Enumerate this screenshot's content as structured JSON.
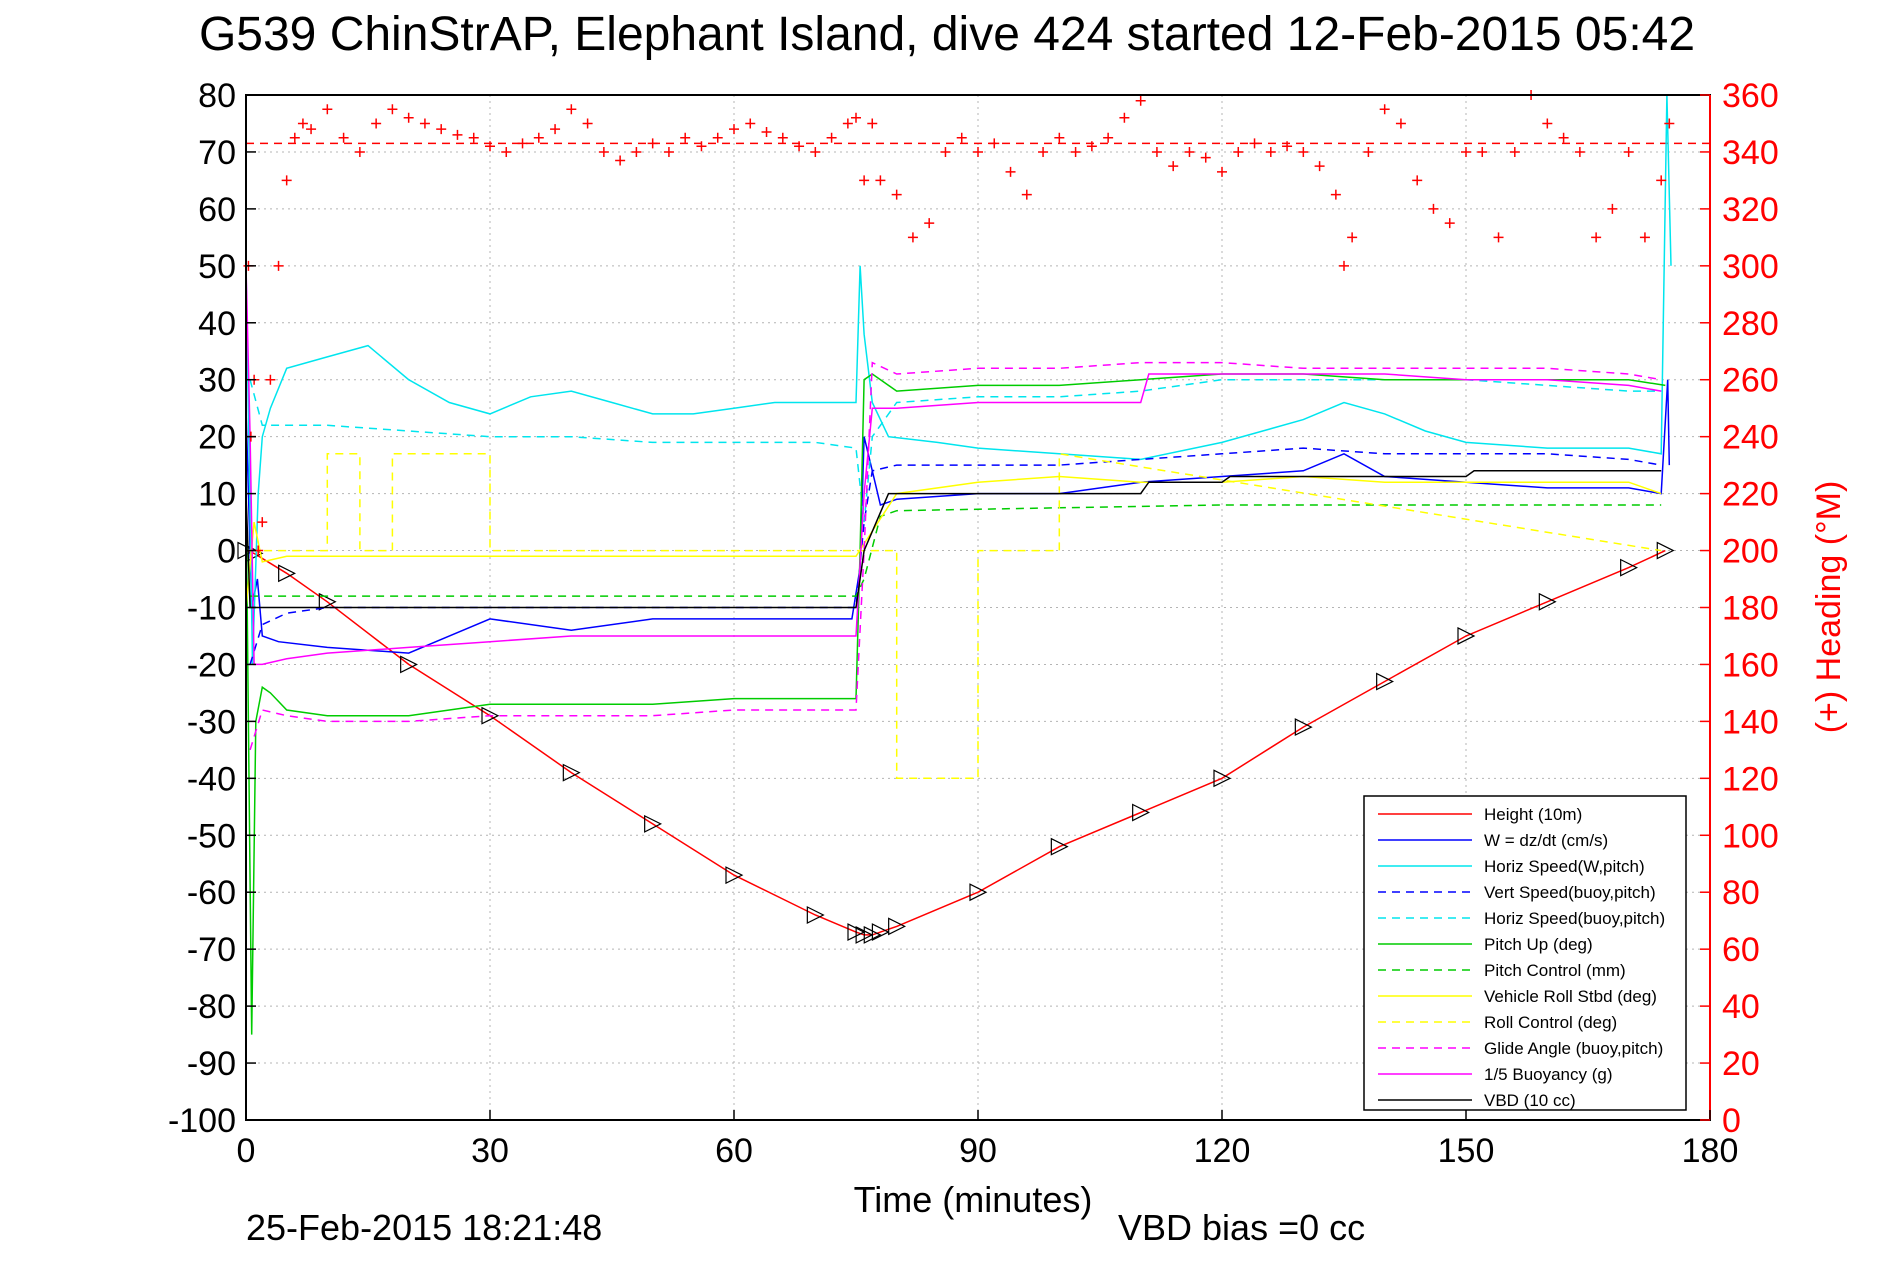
{
  "chart_data": {
    "type": "line",
    "title": "G539 ChinStrAP, Elephant Island, dive 424 started 12-Feb-2015 05:42",
    "xlabel": "Time (minutes)",
    "ylabel": "",
    "y2label": "(+) Heading (°M)",
    "xlim": [
      0,
      180
    ],
    "ylim": [
      -100,
      80
    ],
    "y2lim": [
      0,
      360
    ],
    "x_ticks": [
      "0",
      "30",
      "60",
      "90",
      "120",
      "150",
      "180"
    ],
    "y_ticks": [
      "80",
      "70",
      "60",
      "50",
      "40",
      "30",
      "20",
      "10",
      "0",
      "-10",
      "-20",
      "-30",
      "-40",
      "-50",
      "-60",
      "-70",
      "-80",
      "-90",
      "-100"
    ],
    "y2_ticks": [
      "360",
      "340",
      "320",
      "300",
      "280",
      "260",
      "240",
      "220",
      "200",
      "180",
      "160",
      "140",
      "120",
      "100",
      "80",
      "60",
      "40",
      "20",
      "0"
    ],
    "grid": true,
    "legend_position": "bottom-right",
    "footer_left": "25-Feb-2015 18:21:48",
    "footer_right": "VBD bias =0 cc",
    "colors": {
      "red": "#ff0000",
      "blue": "#0000ff",
      "cyan": "#00e5ee",
      "green": "#00cc00",
      "yellow": "#ffff00",
      "magenta": "#ff00ff",
      "black": "#000000",
      "grid": "#b4b4b4"
    },
    "heading_reference": 343,
    "series": [
      {
        "name": "Height (10m)",
        "color": "#ff0000",
        "style": "solid",
        "axis": "left",
        "x": [
          0,
          1,
          5,
          10,
          20,
          30,
          40,
          50,
          60,
          70,
          75,
          76,
          77,
          78,
          80,
          90,
          100,
          110,
          120,
          130,
          140,
          150,
          160,
          170,
          174.5
        ],
        "y": [
          0,
          -0.5,
          -4,
          -9,
          -20,
          -29,
          -39,
          -48,
          -57,
          -64,
          -67,
          -67.5,
          -67.5,
          -67,
          -66,
          -60,
          -52,
          -46,
          -40,
          -31,
          -23,
          -15,
          -9,
          -3,
          0
        ]
      },
      {
        "name": "W = dz/dt (cm/s)",
        "color": "#0000ff",
        "style": "solid",
        "axis": "left",
        "x": [
          0,
          0.7,
          1.4,
          2,
          4,
          10,
          20,
          30,
          40,
          50,
          60,
          70,
          74.5,
          75.5,
          76,
          77,
          78,
          80,
          90,
          100,
          110,
          120,
          130,
          135,
          140,
          150,
          160,
          170,
          174,
          174.8,
          175
        ],
        "y": [
          25,
          -10,
          -5,
          -15,
          -16,
          -17,
          -18,
          -12,
          -14,
          -12,
          -12,
          -12,
          -12,
          -3,
          20,
          14,
          8,
          9,
          10,
          10,
          12,
          13,
          14,
          17,
          13,
          12,
          11,
          11,
          10,
          30,
          15
        ]
      },
      {
        "name": "Horiz Speed(W,pitch)",
        "color": "#00e5ee",
        "style": "solid",
        "axis": "left",
        "x": [
          0,
          0.8,
          1.5,
          2,
          3,
          5,
          10,
          15,
          20,
          25,
          30,
          35,
          40,
          45,
          50,
          55,
          60,
          65,
          70,
          75,
          75.5,
          76,
          77,
          79,
          85,
          90,
          100,
          110,
          120,
          125,
          130,
          135,
          140,
          145,
          150,
          160,
          170,
          174,
          174.7,
          175.2
        ],
        "y": [
          50,
          -20,
          10,
          20,
          25,
          32,
          34,
          36,
          30,
          26,
          24,
          27,
          28,
          26,
          24,
          24,
          25,
          26,
          26,
          26,
          50,
          38,
          26,
          20,
          19,
          18,
          17,
          16,
          19,
          21,
          23,
          26,
          24,
          21,
          19,
          18,
          18,
          17,
          80,
          50
        ]
      },
      {
        "name": "Vert Speed(buoy,pitch)",
        "color": "#0000ff",
        "style": "dashed",
        "axis": "left",
        "x": [
          0.5,
          2,
          5,
          10,
          20,
          30,
          40,
          50,
          60,
          70,
          75,
          76,
          77,
          80,
          90,
          100,
          110,
          120,
          130,
          140,
          150,
          160,
          170,
          174
        ],
        "y": [
          -20,
          -13,
          -11,
          -10,
          -10,
          -10,
          -10,
          -10,
          -10,
          -10,
          -10,
          5,
          14,
          15,
          15,
          15,
          16,
          17,
          18,
          17,
          17,
          17,
          16,
          15
        ]
      },
      {
        "name": "Horiz Speed(buoy,pitch)",
        "color": "#00e5ee",
        "style": "dashed",
        "axis": "left",
        "x": [
          0.5,
          2,
          5,
          10,
          20,
          30,
          40,
          50,
          60,
          70,
          75,
          76,
          77,
          80,
          90,
          100,
          110,
          120,
          130,
          140,
          150,
          160,
          170,
          174
        ],
        "y": [
          30,
          22,
          22,
          22,
          21,
          20,
          20,
          19,
          19,
          19,
          18,
          5,
          20,
          26,
          27,
          27,
          28,
          30,
          30,
          30,
          30,
          29,
          28,
          28
        ]
      },
      {
        "name": "Pitch Up (deg)",
        "color": "#00cc00",
        "style": "solid",
        "axis": "left",
        "x": [
          0,
          0.7,
          1.2,
          2,
          3,
          5,
          10,
          20,
          30,
          40,
          50,
          60,
          70,
          75,
          75.5,
          76,
          77,
          80,
          90,
          100,
          110,
          120,
          130,
          140,
          150,
          160,
          170,
          174.5
        ],
        "y": [
          10,
          -85,
          -30,
          -24,
          -25,
          -28,
          -29,
          -29,
          -27,
          -27,
          -27,
          -26,
          -26,
          -26,
          0,
          30,
          31,
          28,
          29,
          29,
          30,
          31,
          31,
          30,
          30,
          30,
          30,
          29
        ]
      },
      {
        "name": "Pitch Control (mm)",
        "color": "#00cc00",
        "style": "dashed",
        "axis": "left",
        "x": [
          0.5,
          75,
          76,
          78,
          80,
          100,
          120,
          150,
          174
        ],
        "y": [
          -8,
          -8,
          -5,
          6,
          7,
          7.5,
          8,
          8,
          8
        ]
      },
      {
        "name": "Vehicle Roll Stbd (deg)",
        "color": "#ffff00",
        "style": "solid",
        "axis": "left",
        "x": [
          0,
          1,
          2,
          5,
          10,
          20,
          30,
          40,
          50,
          60,
          70,
          75,
          80,
          90,
          100,
          110,
          120,
          130,
          140,
          150,
          160,
          170,
          174
        ],
        "y": [
          -10,
          5,
          -2,
          -1,
          -1,
          -1,
          -1,
          -1,
          -1,
          -1,
          -1,
          -1,
          10,
          12,
          13,
          12,
          12,
          13,
          12,
          12,
          12,
          12,
          10
        ]
      },
      {
        "name": "Roll Control (deg)",
        "color": "#ffff00",
        "style": "dashed",
        "axis": "left",
        "x": [
          0.5,
          10,
          10,
          14,
          14,
          18,
          18,
          30,
          30,
          80,
          80,
          90,
          90,
          100,
          100,
          174
        ],
        "y": [
          0,
          0,
          17,
          17,
          0,
          0,
          17,
          17,
          0,
          0,
          -40,
          -40,
          0,
          0,
          17,
          0
        ]
      },
      {
        "name": "Glide Angle (buoy,pitch)",
        "color": "#ff00ff",
        "style": "dashed",
        "axis": "left",
        "x": [
          0.5,
          2,
          5,
          10,
          20,
          30,
          40,
          50,
          60,
          70,
          75,
          76,
          77,
          80,
          90,
          100,
          110,
          120,
          130,
          140,
          150,
          160,
          170,
          174
        ],
        "y": [
          -35,
          -28,
          -29,
          -30,
          -30,
          -29,
          -29,
          -29,
          -28,
          -28,
          -28,
          0,
          33,
          31,
          32,
          32,
          33,
          33,
          32,
          32,
          32,
          32,
          31,
          30
        ]
      },
      {
        "name": "1/5 Buoyancy (g)",
        "color": "#ff00ff",
        "style": "solid",
        "axis": "left",
        "x": [
          0,
          0.5,
          1,
          2,
          5,
          10,
          20,
          30,
          40,
          50,
          60,
          70,
          75,
          76,
          77,
          80,
          90,
          100,
          110,
          111,
          120,
          130,
          140,
          150,
          160,
          170,
          174
        ],
        "y": [
          50,
          20,
          -20,
          -20,
          -19,
          -18,
          -17,
          -16,
          -15,
          -15,
          -15,
          -15,
          -15,
          10,
          25,
          25,
          26,
          26,
          26,
          31,
          31,
          31,
          31,
          30,
          30,
          29,
          28
        ]
      },
      {
        "name": "VBD (10 cc)",
        "color": "#000000",
        "style": "solid",
        "axis": "left",
        "x": [
          0,
          0.5,
          75,
          76,
          79,
          80,
          110,
          111,
          120,
          121,
          150,
          151,
          174
        ],
        "y": [
          10,
          -10,
          -10,
          0,
          10,
          10,
          10,
          12,
          12,
          13,
          13,
          14,
          14
        ]
      },
      {
        "name": "Heading (°M)",
        "color": "#ff0000",
        "style": "plus",
        "axis": "right",
        "x": [
          0.3,
          0.6,
          1,
          1.5,
          2,
          3,
          4,
          5,
          6,
          7,
          8,
          10,
          12,
          14,
          16,
          18,
          20,
          22,
          24,
          26,
          28,
          30,
          32,
          34,
          36,
          38,
          40,
          42,
          44,
          46,
          48,
          50,
          52,
          54,
          56,
          58,
          60,
          62,
          64,
          66,
          68,
          70,
          72,
          74,
          75,
          76,
          77,
          78,
          80,
          82,
          84,
          86,
          88,
          90,
          92,
          94,
          96,
          98,
          100,
          102,
          104,
          106,
          108,
          110,
          112,
          114,
          116,
          118,
          120,
          122,
          124,
          126,
          128,
          130,
          132,
          134,
          135,
          136,
          138,
          140,
          142,
          144,
          146,
          148,
          150,
          152,
          154,
          156,
          158,
          160,
          162,
          164,
          166,
          168,
          170,
          172,
          174,
          175
        ],
        "y": [
          300,
          240,
          260,
          200,
          210,
          260,
          300,
          330,
          345,
          350,
          348,
          355,
          345,
          340,
          350,
          355,
          352,
          350,
          348,
          346,
          345,
          342,
          340,
          343,
          345,
          348,
          355,
          350,
          340,
          337,
          340,
          343,
          340,
          345,
          342,
          345,
          348,
          350,
          347,
          345,
          342,
          340,
          345,
          350,
          352,
          330,
          350,
          330,
          325,
          310,
          315,
          340,
          345,
          340,
          343,
          333,
          325,
          340,
          345,
          340,
          342,
          345,
          352,
          358,
          340,
          335,
          340,
          338,
          333,
          340,
          343,
          340,
          342,
          340,
          335,
          325,
          300,
          310,
          340,
          355,
          350,
          330,
          320,
          315,
          340,
          340,
          310,
          340,
          360,
          350,
          345,
          340,
          310,
          320,
          340,
          310,
          330,
          350
        ]
      }
    ]
  }
}
